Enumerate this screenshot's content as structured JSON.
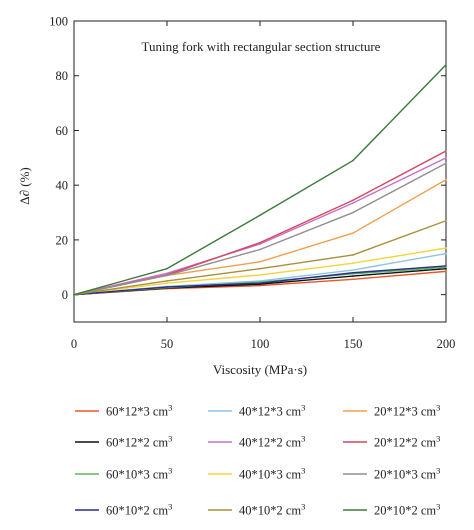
{
  "chart_data": {
    "type": "line",
    "title": "Tuning fork with rectangular section structure",
    "xlabel": "Viscosity (MPa·s)",
    "ylabel": "Δ∂ (%)",
    "xlim": [
      0,
      200
    ],
    "ylim": [
      -10,
      100
    ],
    "x": [
      0,
      50,
      100,
      150,
      200
    ],
    "x_ticks": [
      "0",
      "50",
      "100",
      "150",
      "200"
    ],
    "y_ticks": [
      "0",
      "20",
      "40",
      "60",
      "80",
      "100"
    ],
    "grid": false,
    "legend_placement": "below",
    "legend_unit_base": "cm",
    "legend_unit_exp": "3",
    "series": [
      {
        "name": "60*12*3",
        "color": "#e8562a",
        "values": [
          0,
          2.2,
          3.3,
          5.6,
          8.5
        ]
      },
      {
        "name": "40*12*3",
        "color": "#8ec3e0",
        "values": [
          0,
          3.0,
          5.0,
          9.0,
          15.0
        ]
      },
      {
        "name": "20*12*3",
        "color": "#f0a04c",
        "values": [
          0,
          7.0,
          12.0,
          22.5,
          42.0
        ]
      },
      {
        "name": "60*12*2",
        "color": "#111111",
        "values": [
          0,
          2.4,
          3.8,
          6.8,
          9.5
        ]
      },
      {
        "name": "40*12*2",
        "color": "#c86ec8",
        "values": [
          0,
          7.8,
          18.5,
          33.5,
          50.0
        ]
      },
      {
        "name": "20*12*2",
        "color": "#d2475f",
        "values": [
          0,
          7.2,
          19.0,
          34.5,
          52.5
        ]
      },
      {
        "name": "60*10*3",
        "color": "#5cb85c",
        "values": [
          0,
          2.6,
          4.6,
          7.6,
          10.0
        ]
      },
      {
        "name": "40*10*3",
        "color": "#f5d33a",
        "values": [
          0,
          4.2,
          7.2,
          11.5,
          17.0
        ]
      },
      {
        "name": "20*10*3",
        "color": "#909090",
        "values": [
          0,
          7.0,
          16.5,
          30.0,
          48.0
        ]
      },
      {
        "name": "60*10*2",
        "color": "#2c2c8c",
        "values": [
          0,
          2.8,
          4.2,
          8.0,
          10.5
        ]
      },
      {
        "name": "40*10*2",
        "color": "#a8903a",
        "values": [
          0,
          5.0,
          9.5,
          14.5,
          27.0
        ]
      },
      {
        "name": "20*10*2",
        "color": "#3a7a3a",
        "values": [
          0,
          9.5,
          29.0,
          49.0,
          84.0
        ]
      }
    ]
  }
}
